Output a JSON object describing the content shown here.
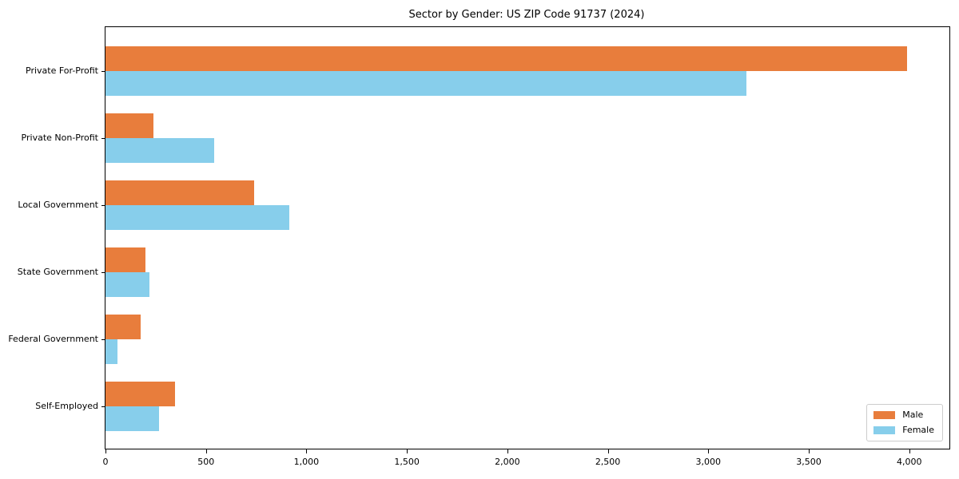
{
  "chart_data": {
    "type": "bar",
    "orientation": "horizontal",
    "title": "Sector by Gender: US ZIP Code 91737 (2024)",
    "categories": [
      "Private For-Profit",
      "Private Non-Profit",
      "Local Government",
      "State Government",
      "Federal Government",
      "Self-Employed"
    ],
    "series": [
      {
        "name": "Male",
        "color": "#e87d3c",
        "values": [
          3990,
          240,
          740,
          200,
          175,
          345
        ]
      },
      {
        "name": "Female",
        "color": "#87ceeb",
        "values": [
          3190,
          540,
          915,
          220,
          60,
          265
        ]
      }
    ],
    "xlabel": "",
    "ylabel": "",
    "xlim": [
      0,
      4200
    ],
    "xticks": {
      "values": [
        0,
        500,
        1000,
        1500,
        2000,
        2500,
        3000,
        3500,
        4000
      ],
      "labels": [
        "0",
        "500",
        "1,000",
        "1,500",
        "2,000",
        "2,500",
        "3,000",
        "3,500",
        "4,000"
      ]
    },
    "grid": false,
    "legend": {
      "position": "lower right"
    }
  }
}
